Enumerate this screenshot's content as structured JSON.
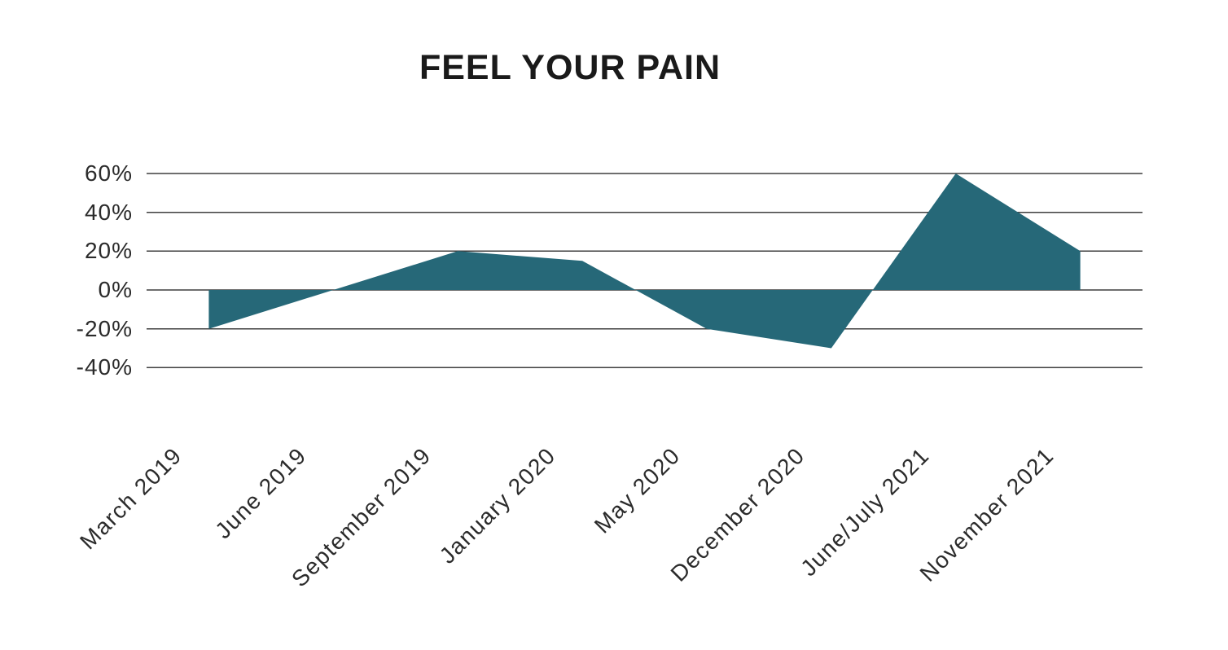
{
  "title": "FEEL YOUR PAIN",
  "chart_data": {
    "type": "area",
    "title": "FEEL YOUR PAIN",
    "categories": [
      "March 2019",
      "June 2019",
      "September 2019",
      "January 2020",
      "May 2020",
      "December 2020",
      "June/July 2021",
      "November 2021"
    ],
    "values": [
      -20,
      0,
      20,
      15,
      -20,
      -30,
      60,
      20
    ],
    "xlabel": "",
    "ylabel": "",
    "ylim": [
      -40,
      60
    ],
    "yticks": [
      60,
      40,
      20,
      0,
      -20,
      -40
    ],
    "ytick_labels": [
      "60%",
      "40%",
      "20%",
      "0%",
      "-20%",
      "-40%"
    ],
    "baseline": 0,
    "grid": true,
    "legend": false,
    "x_labels_rotation_deg": -45,
    "area_color": "#266878",
    "gridline_color": "#3f3f3f",
    "label_color": "#2b2b2b",
    "title_color": "#1a1a1a",
    "background_color": "#ffffff"
  }
}
